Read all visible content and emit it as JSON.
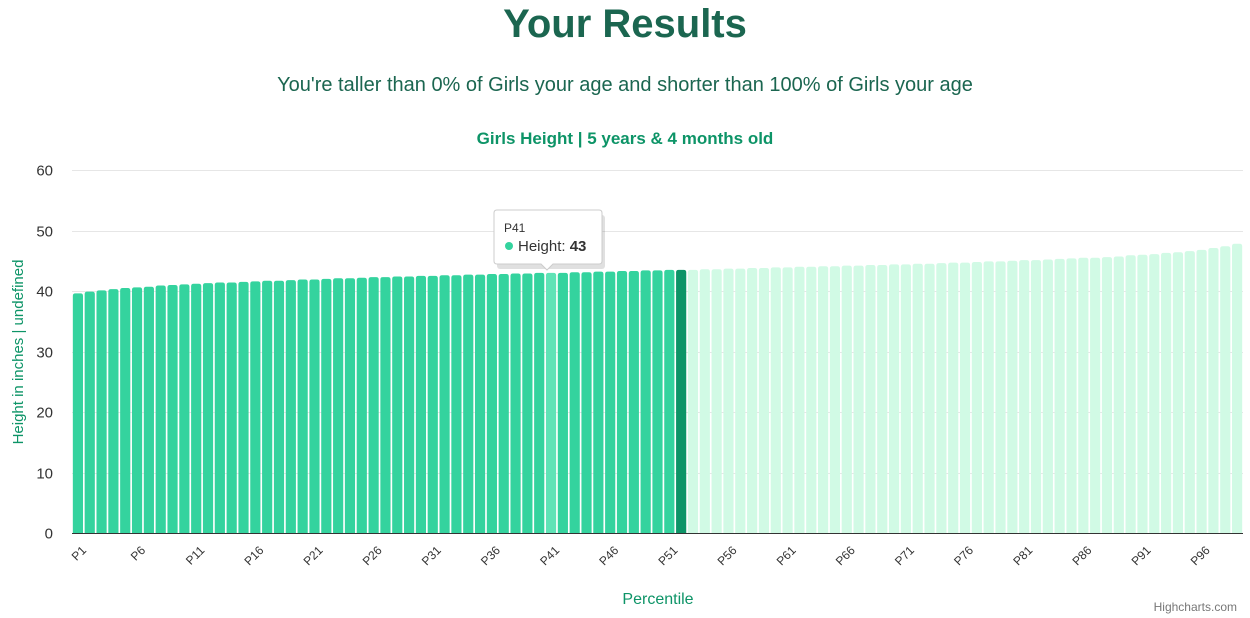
{
  "page": {
    "title": "Your Results",
    "summary": "You're taller than 0% of Girls your age and shorter than 100% of Girls your age",
    "credits": "Highcharts.com"
  },
  "colors": {
    "accent": "#1b6650",
    "bar_below": "#34d39e",
    "bar_user": "#0d9467",
    "bar_above": "#d1fae5",
    "bar_hover": "#5fe3b6",
    "axis_label": "#0d9467"
  },
  "tooltip": {
    "category": "P41",
    "series_label": "Height",
    "value": "43"
  },
  "chart_data": {
    "type": "bar",
    "title": "Girls Height | 5 years & 4 months old",
    "xlabel": "Percentile",
    "ylabel": "Height in inches | undefined",
    "ylim": [
      0,
      60
    ],
    "yticks": [
      0,
      10,
      20,
      30,
      40,
      50,
      60
    ],
    "grid": true,
    "legend": "none",
    "categories": [
      "P1",
      "P2",
      "P3",
      "P4",
      "P5",
      "P6",
      "P7",
      "P8",
      "P9",
      "P10",
      "P11",
      "P12",
      "P13",
      "P14",
      "P15",
      "P16",
      "P17",
      "P18",
      "P19",
      "P20",
      "P21",
      "P22",
      "P23",
      "P24",
      "P25",
      "P26",
      "P27",
      "P28",
      "P29",
      "P30",
      "P31",
      "P32",
      "P33",
      "P34",
      "P35",
      "P36",
      "P37",
      "P38",
      "P39",
      "P40",
      "P41",
      "P42",
      "P43",
      "P44",
      "P45",
      "P46",
      "P47",
      "P48",
      "P49",
      "P50",
      "P51",
      "P52",
      "P53",
      "P54",
      "P55",
      "P56",
      "P57",
      "P58",
      "P59",
      "P60",
      "P61",
      "P62",
      "P63",
      "P64",
      "P65",
      "P66",
      "P67",
      "P68",
      "P69",
      "P70",
      "P71",
      "P72",
      "P73",
      "P74",
      "P75",
      "P76",
      "P77",
      "P78",
      "P79",
      "P80",
      "P81",
      "P82",
      "P83",
      "P84",
      "P85",
      "P86",
      "P87",
      "P88",
      "P89",
      "P90",
      "P91",
      "P92",
      "P93",
      "P94",
      "P95",
      "P96",
      "P97",
      "P98",
      "P99"
    ],
    "x_tick_labels": [
      "P1",
      "P6",
      "P11",
      "P16",
      "P21",
      "P26",
      "P31",
      "P36",
      "P41",
      "P46",
      "P51",
      "P56",
      "P61",
      "P66",
      "P71",
      "P76",
      "P81",
      "P86",
      "P91",
      "P96"
    ],
    "highlight_index": 51,
    "hover_index": 40,
    "series": [
      {
        "name": "Height",
        "values": [
          39.6,
          39.9,
          40.1,
          40.3,
          40.5,
          40.6,
          40.7,
          40.9,
          41.0,
          41.1,
          41.2,
          41.3,
          41.4,
          41.4,
          41.5,
          41.6,
          41.7,
          41.7,
          41.8,
          41.9,
          41.9,
          42.0,
          42.1,
          42.1,
          42.2,
          42.3,
          42.3,
          42.4,
          42.4,
          42.5,
          42.5,
          42.6,
          42.6,
          42.7,
          42.7,
          42.8,
          42.8,
          42.9,
          42.9,
          43.0,
          43.0,
          43.0,
          43.1,
          43.1,
          43.2,
          43.2,
          43.3,
          43.3,
          43.4,
          43.4,
          43.5,
          43.5,
          43.5,
          43.6,
          43.6,
          43.7,
          43.7,
          43.8,
          43.8,
          43.9,
          43.9,
          44.0,
          44.0,
          44.1,
          44.1,
          44.2,
          44.2,
          44.3,
          44.3,
          44.4,
          44.4,
          44.5,
          44.5,
          44.6,
          44.7,
          44.7,
          44.8,
          44.9,
          44.9,
          45.0,
          45.1,
          45.1,
          45.2,
          45.3,
          45.4,
          45.5,
          45.5,
          45.6,
          45.7,
          45.9,
          46.0,
          46.1,
          46.3,
          46.4,
          46.6,
          46.8,
          47.1,
          47.4,
          47.8
        ]
      }
    ]
  }
}
